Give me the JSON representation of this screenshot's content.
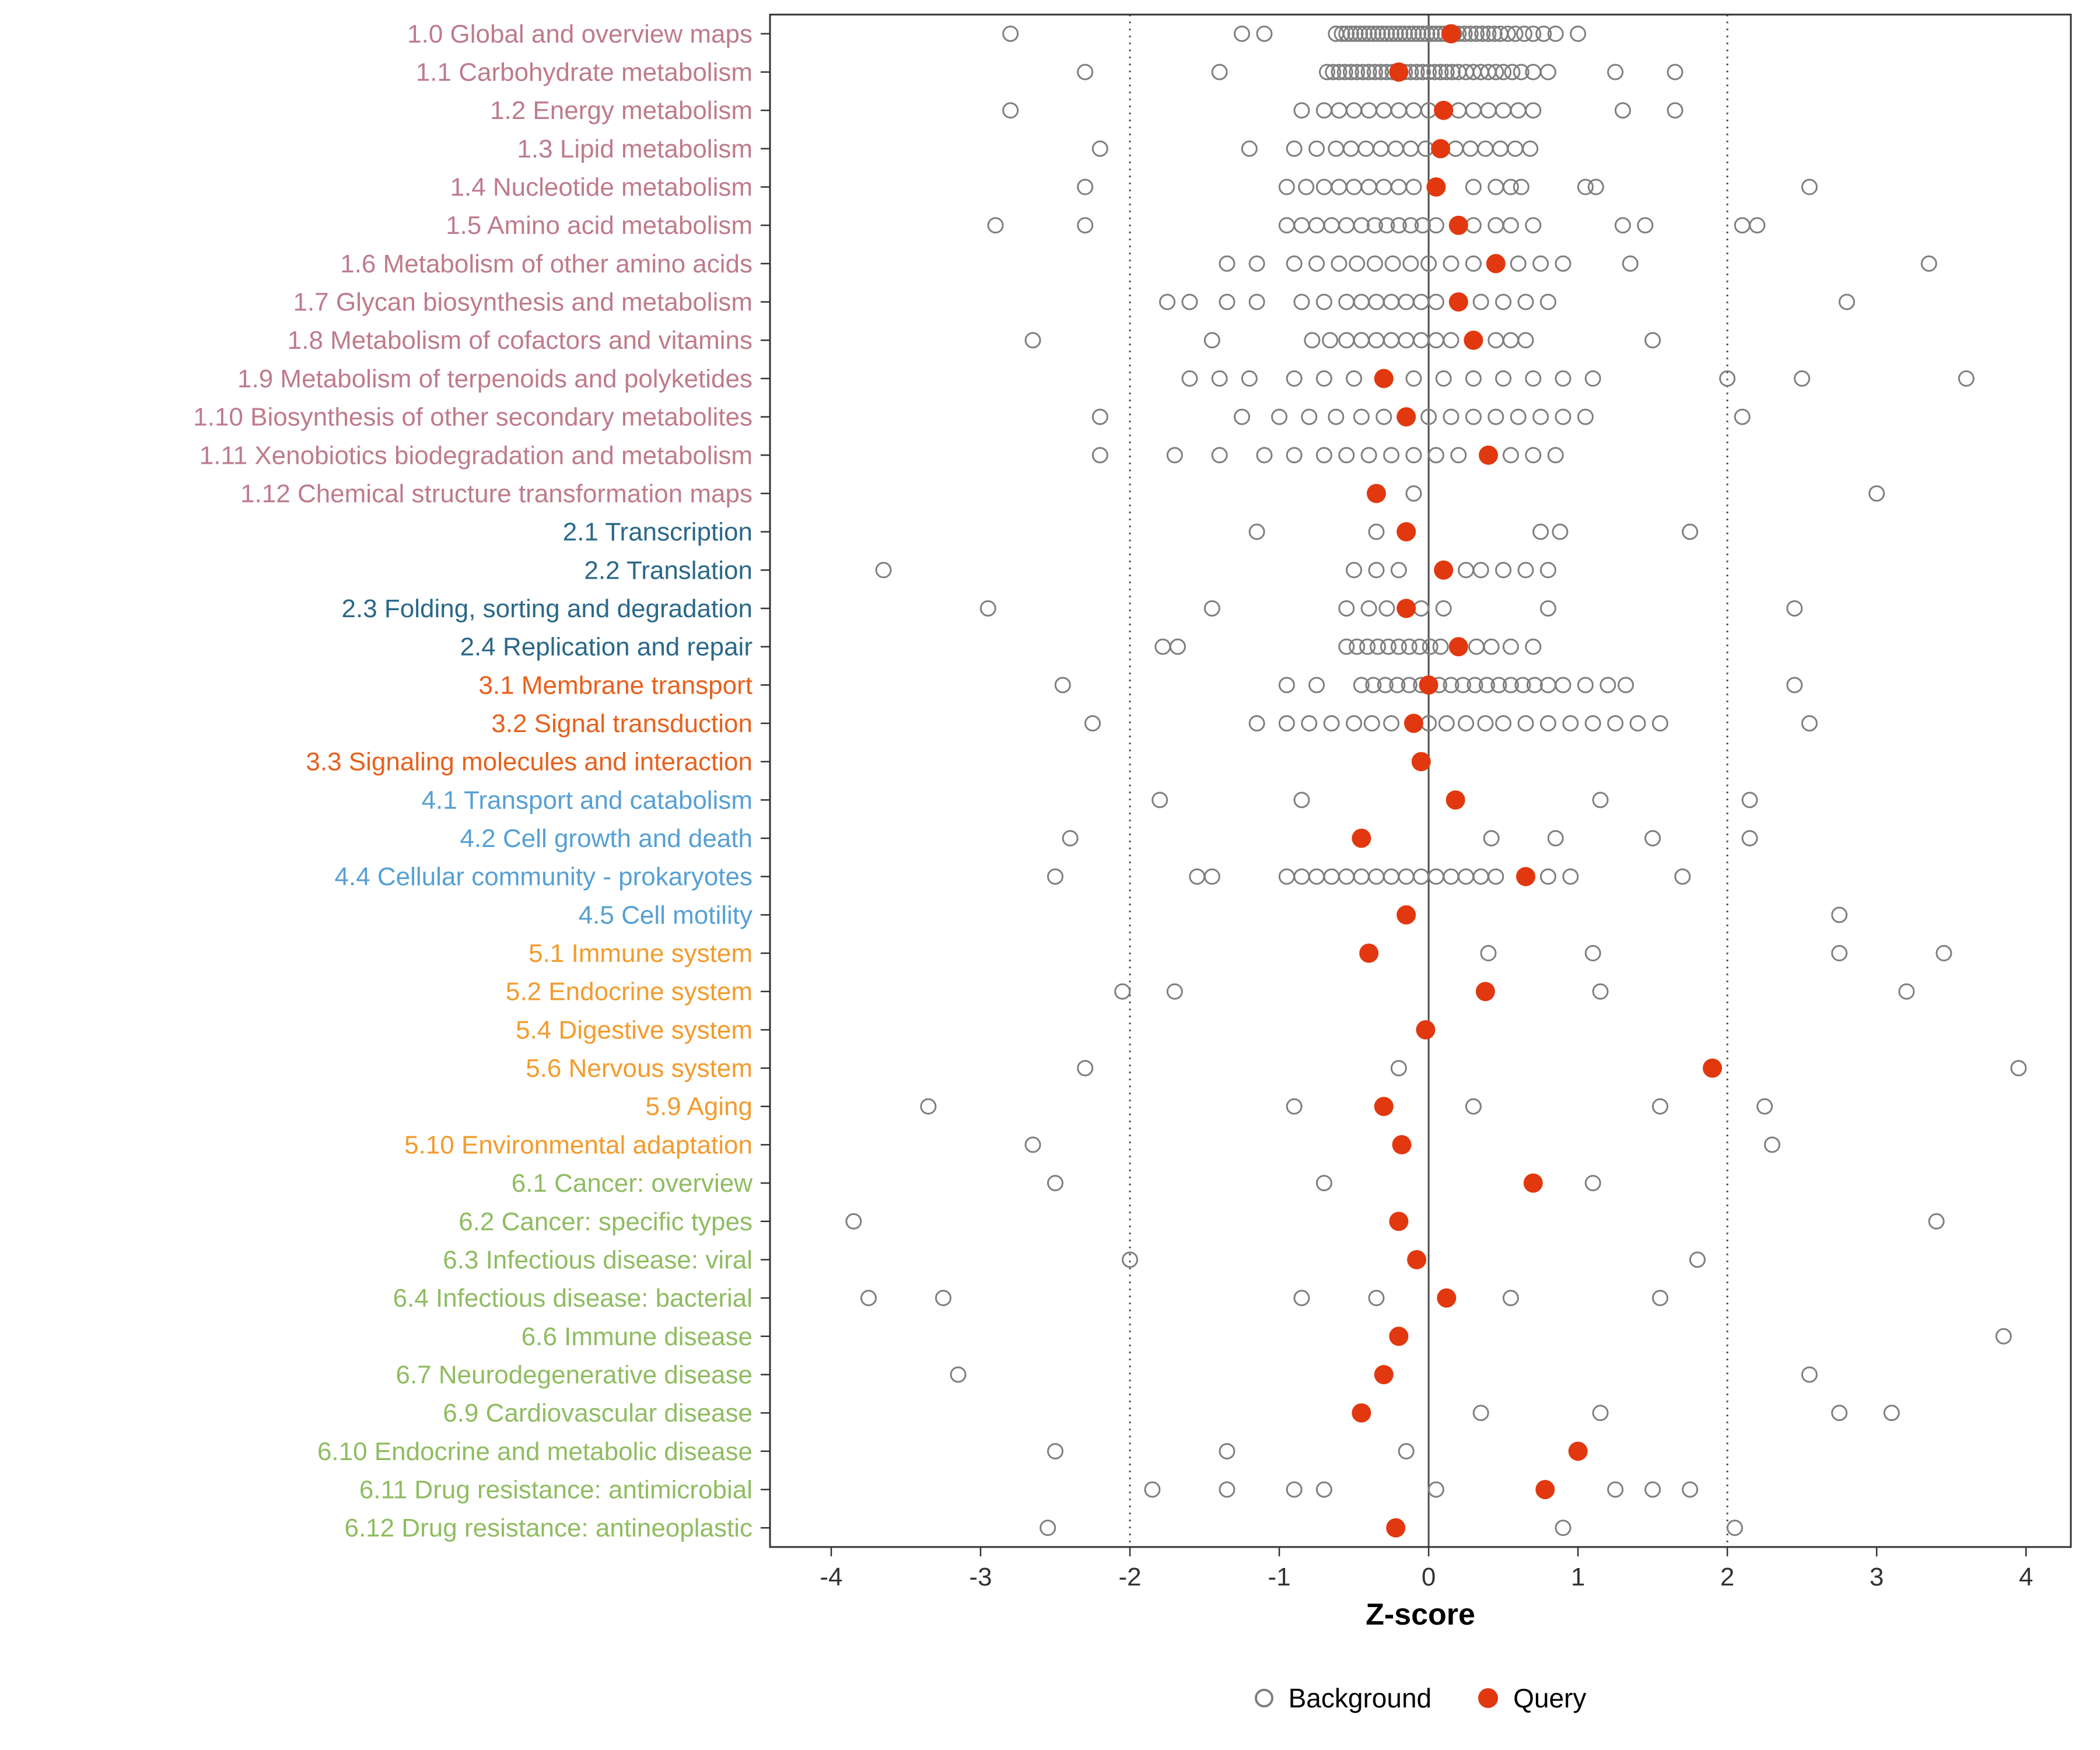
{
  "chart_data": {
    "type": "scatter",
    "subtype": "horizontal_strip_dotplot",
    "title": "",
    "xlabel": "Z-score",
    "ylabel": "",
    "x_ticks": [
      -4,
      -3,
      -2,
      -1,
      0,
      1,
      2,
      3,
      4
    ],
    "xlim": [
      -4.41,
      4.3
    ],
    "grid": false,
    "reference_lines": {
      "solid": [
        0
      ],
      "dotted": [
        -2,
        2
      ]
    },
    "legend": {
      "position": "bottom",
      "background_label": "Background",
      "query_label": "Query"
    },
    "colors": {
      "query": "#E2380F",
      "background_stroke": "#7F7F7F",
      "axis_text": "#333333",
      "groups": {
        "1": "#BE7B8B",
        "2": "#2A6889",
        "3": "#E8601C",
        "4": "#56A0D3",
        "5": "#F39B2D",
        "6": "#8FBC61"
      }
    },
    "rows": [
      {
        "label": "1.0 Global and overview maps",
        "group": "1",
        "query": 0.15,
        "background": [
          -2.8,
          -1.25,
          -1.1,
          -0.62,
          -0.58,
          -0.55,
          -0.52,
          -0.49,
          -0.46,
          -0.43,
          -0.4,
          -0.37,
          -0.34,
          -0.31,
          -0.28,
          -0.25,
          -0.22,
          -0.19,
          -0.16,
          -0.13,
          -0.1,
          -0.07,
          -0.04,
          -0.01,
          0.02,
          0.05,
          0.08,
          0.11,
          0.14,
          0.17,
          0.2,
          0.24,
          0.28,
          0.32,
          0.36,
          0.4,
          0.44,
          0.48,
          0.53,
          0.58,
          0.64,
          0.7,
          0.77,
          0.85,
          1.0
        ]
      },
      {
        "label": "1.1 Carbohydrate metabolism",
        "group": "1",
        "query": -0.2,
        "background": [
          -2.3,
          -1.4,
          -0.68,
          -0.64,
          -0.6,
          -0.56,
          -0.52,
          -0.48,
          -0.44,
          -0.4,
          -0.36,
          -0.32,
          -0.28,
          -0.24,
          -0.2,
          -0.16,
          -0.12,
          -0.08,
          -0.04,
          0.0,
          0.04,
          0.08,
          0.12,
          0.16,
          0.2,
          0.25,
          0.3,
          0.35,
          0.4,
          0.45,
          0.5,
          0.56,
          0.62,
          0.7,
          0.8,
          1.25,
          1.65
        ]
      },
      {
        "label": "1.2 Energy metabolism",
        "group": "1",
        "query": 0.1,
        "background": [
          -2.8,
          -0.85,
          -0.7,
          -0.6,
          -0.5,
          -0.4,
          -0.3,
          -0.2,
          -0.1,
          0.0,
          0.2,
          0.3,
          0.4,
          0.5,
          0.6,
          0.7,
          1.3,
          1.65
        ]
      },
      {
        "label": "1.3 Lipid metabolism",
        "group": "1",
        "query": 0.08,
        "background": [
          -2.2,
          -1.2,
          -0.9,
          -0.75,
          -0.62,
          -0.52,
          -0.42,
          -0.32,
          -0.22,
          -0.12,
          -0.02,
          0.18,
          0.28,
          0.38,
          0.48,
          0.58,
          0.68
        ]
      },
      {
        "label": "1.4 Nucleotide metabolism",
        "group": "1",
        "query": 0.05,
        "background": [
          -2.3,
          -0.95,
          -0.82,
          -0.7,
          -0.6,
          -0.5,
          -0.4,
          -0.3,
          -0.2,
          -0.1,
          0.3,
          0.45,
          0.55,
          0.62,
          1.05,
          1.12,
          2.55
        ]
      },
      {
        "label": "1.5 Amino acid metabolism",
        "group": "1",
        "query": 0.2,
        "background": [
          -2.9,
          -2.3,
          -0.95,
          -0.85,
          -0.75,
          -0.65,
          -0.55,
          -0.45,
          -0.36,
          -0.28,
          -0.2,
          -0.12,
          -0.04,
          0.05,
          0.3,
          0.45,
          0.55,
          0.7,
          1.3,
          1.45,
          2.1,
          2.2
        ]
      },
      {
        "label": "1.6 Metabolism of other amino acids",
        "group": "1",
        "query": 0.45,
        "background": [
          -1.35,
          -1.15,
          -0.9,
          -0.75,
          -0.6,
          -0.48,
          -0.36,
          -0.24,
          -0.12,
          0.0,
          0.15,
          0.3,
          0.6,
          0.75,
          0.9,
          1.35,
          3.35
        ]
      },
      {
        "label": "1.7 Glycan biosynthesis and metabolism",
        "group": "1",
        "query": 0.2,
        "background": [
          -1.75,
          -1.6,
          -1.35,
          -1.15,
          -0.85,
          -0.7,
          -0.55,
          -0.45,
          -0.35,
          -0.25,
          -0.15,
          -0.05,
          0.05,
          0.35,
          0.5,
          0.65,
          0.8,
          2.8
        ]
      },
      {
        "label": "1.8 Metabolism of cofactors and vitamins",
        "group": "1",
        "query": 0.3,
        "background": [
          -2.65,
          -1.45,
          -0.78,
          -0.66,
          -0.55,
          -0.45,
          -0.35,
          -0.25,
          -0.15,
          -0.05,
          0.05,
          0.15,
          0.45,
          0.55,
          0.65,
          1.5
        ]
      },
      {
        "label": "1.9 Metabolism of terpenoids and polyketides",
        "group": "1",
        "query": -0.3,
        "background": [
          -1.6,
          -1.4,
          -1.2,
          -0.9,
          -0.7,
          -0.5,
          -0.1,
          0.1,
          0.3,
          0.5,
          0.7,
          0.9,
          1.1,
          2.0,
          2.5,
          3.6
        ]
      },
      {
        "label": "1.10 Biosynthesis of other secondary metabolites",
        "group": "1",
        "query": -0.15,
        "background": [
          -2.2,
          -1.25,
          -1.0,
          -0.8,
          -0.62,
          -0.45,
          -0.3,
          0.0,
          0.15,
          0.3,
          0.45,
          0.6,
          0.75,
          0.9,
          1.05,
          2.1
        ]
      },
      {
        "label": "1.11 Xenobiotics biodegradation and metabolism",
        "group": "1",
        "query": 0.4,
        "background": [
          -2.2,
          -1.7,
          -1.4,
          -1.1,
          -0.9,
          -0.7,
          -0.55,
          -0.4,
          -0.25,
          -0.1,
          0.05,
          0.2,
          0.55,
          0.7,
          0.85
        ]
      },
      {
        "label": "1.12 Chemical structure transformation maps",
        "group": "1",
        "query": -0.35,
        "background": [
          -0.1,
          3.0
        ]
      },
      {
        "label": "2.1 Transcription",
        "group": "2",
        "query": -0.15,
        "background": [
          -1.15,
          -0.35,
          0.75,
          0.88,
          1.75
        ]
      },
      {
        "label": "2.2 Translation",
        "group": "2",
        "query": 0.1,
        "background": [
          -3.65,
          -0.5,
          -0.35,
          -0.2,
          0.25,
          0.35,
          0.5,
          0.65,
          0.8
        ]
      },
      {
        "label": "2.3 Folding, sorting and degradation",
        "group": "2",
        "query": -0.15,
        "background": [
          -2.95,
          -1.45,
          -0.55,
          -0.4,
          -0.28,
          -0.05,
          0.1,
          0.8,
          2.45
        ]
      },
      {
        "label": "2.4 Replication and repair",
        "group": "2",
        "query": 0.2,
        "background": [
          -1.78,
          -1.68,
          -0.55,
          -0.48,
          -0.41,
          -0.34,
          -0.27,
          -0.2,
          -0.13,
          -0.06,
          0.01,
          0.08,
          0.32,
          0.42,
          0.55,
          0.7
        ]
      },
      {
        "label": "3.1 Membrane transport",
        "group": "3",
        "query": 0.0,
        "background": [
          -2.45,
          -0.95,
          -0.75,
          -0.45,
          -0.37,
          -0.29,
          -0.21,
          -0.13,
          -0.05,
          0.07,
          0.15,
          0.23,
          0.31,
          0.39,
          0.47,
          0.55,
          0.63,
          0.71,
          0.8,
          0.9,
          1.05,
          1.2,
          1.32,
          2.45
        ]
      },
      {
        "label": "3.2 Signal transduction",
        "group": "3",
        "query": -0.1,
        "background": [
          -2.25,
          -1.15,
          -0.95,
          -0.8,
          -0.65,
          -0.5,
          -0.38,
          -0.25,
          0.0,
          0.12,
          0.25,
          0.38,
          0.5,
          0.65,
          0.8,
          0.95,
          1.1,
          1.25,
          1.4,
          1.55,
          2.55
        ]
      },
      {
        "label": "3.3 Signaling molecules and interaction",
        "group": "3",
        "query": -0.05,
        "background": []
      },
      {
        "label": "4.1 Transport and catabolism",
        "group": "4",
        "query": 0.18,
        "background": [
          -1.8,
          -0.85,
          1.15,
          2.15
        ]
      },
      {
        "label": "4.2 Cell growth and death",
        "group": "4",
        "query": -0.45,
        "background": [
          -2.4,
          0.42,
          0.85,
          1.5,
          2.15
        ]
      },
      {
        "label": "4.4 Cellular community - prokaryotes",
        "group": "4",
        "query": 0.65,
        "background": [
          -2.5,
          -1.55,
          -1.45,
          -0.95,
          -0.85,
          -0.75,
          -0.65,
          -0.55,
          -0.45,
          -0.35,
          -0.25,
          -0.15,
          -0.05,
          0.05,
          0.15,
          0.25,
          0.35,
          0.45,
          0.8,
          0.95,
          1.7
        ]
      },
      {
        "label": "4.5 Cell motility",
        "group": "4",
        "query": -0.15,
        "background": [
          2.75
        ]
      },
      {
        "label": "5.1 Immune system",
        "group": "5",
        "query": -0.4,
        "background": [
          0.4,
          1.1,
          2.75,
          3.45
        ]
      },
      {
        "label": "5.2 Endocrine system",
        "group": "5",
        "query": 0.38,
        "background": [
          -2.05,
          -1.7,
          1.15,
          3.2
        ]
      },
      {
        "label": "5.4 Digestive system",
        "group": "5",
        "query": -0.02,
        "background": []
      },
      {
        "label": "5.6 Nervous system",
        "group": "5",
        "query": 1.9,
        "background": [
          -2.3,
          -0.2,
          3.95
        ]
      },
      {
        "label": "5.9 Aging",
        "group": "5",
        "query": -0.3,
        "background": [
          -3.35,
          -0.9,
          0.3,
          1.55,
          2.25
        ]
      },
      {
        "label": "5.10 Environmental adaptation",
        "group": "5",
        "query": -0.18,
        "background": [
          -2.65,
          2.3
        ]
      },
      {
        "label": "6.1 Cancer: overview",
        "group": "6",
        "query": 0.7,
        "background": [
          -2.5,
          -0.7,
          1.1
        ]
      },
      {
        "label": "6.2 Cancer: specific types",
        "group": "6",
        "query": -0.2,
        "background": [
          -3.85,
          3.4
        ]
      },
      {
        "label": "6.3 Infectious disease: viral",
        "group": "6",
        "query": -0.08,
        "background": [
          -2.0,
          1.8
        ]
      },
      {
        "label": "6.4 Infectious disease: bacterial",
        "group": "6",
        "query": 0.12,
        "background": [
          -3.75,
          -3.25,
          -0.85,
          -0.35,
          0.55,
          1.55
        ]
      },
      {
        "label": "6.6 Immune disease",
        "group": "6",
        "query": -0.2,
        "background": [
          3.85
        ]
      },
      {
        "label": "6.7 Neurodegenerative disease",
        "group": "6",
        "query": -0.3,
        "background": [
          -3.15,
          2.55
        ]
      },
      {
        "label": "6.9 Cardiovascular disease",
        "group": "6",
        "query": -0.45,
        "background": [
          0.35,
          1.15,
          2.75,
          3.1
        ]
      },
      {
        "label": "6.10 Endocrine and metabolic disease",
        "group": "6",
        "query": 1.0,
        "background": [
          -2.5,
          -1.35,
          -0.15
        ]
      },
      {
        "label": "6.11 Drug resistance: antimicrobial",
        "group": "6",
        "query": 0.78,
        "background": [
          -1.85,
          -1.35,
          -0.9,
          -0.7,
          0.05,
          1.25,
          1.5,
          1.75
        ]
      },
      {
        "label": "6.12 Drug resistance: antineoplastic",
        "group": "6",
        "query": -0.22,
        "background": [
          -2.55,
          0.9,
          2.05
        ]
      }
    ]
  }
}
